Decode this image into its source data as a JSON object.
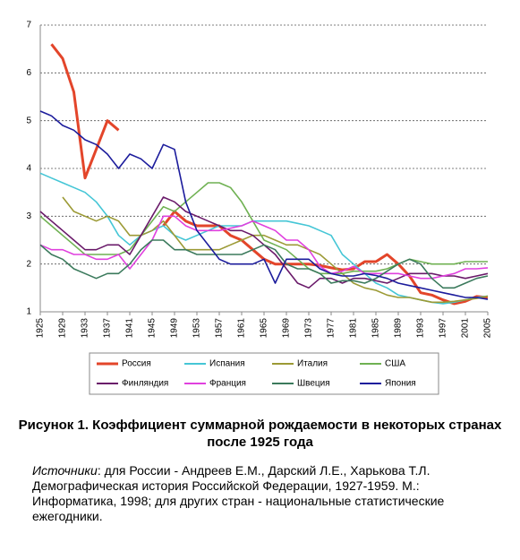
{
  "chart_data": {
    "type": "line",
    "x": [
      1925,
      1927,
      1929,
      1931,
      1933,
      1935,
      1937,
      1939,
      1941,
      1943,
      1945,
      1947,
      1949,
      1951,
      1953,
      1955,
      1957,
      1959,
      1961,
      1963,
      1965,
      1967,
      1969,
      1971,
      1973,
      1975,
      1977,
      1979,
      1981,
      1983,
      1985,
      1987,
      1989,
      1991,
      1993,
      1995,
      1997,
      1999,
      2001,
      2003,
      2005
    ],
    "xlim": [
      1925,
      2005
    ],
    "xticks": [
      1925,
      1929,
      1933,
      1937,
      1941,
      1945,
      1949,
      1953,
      1957,
      1961,
      1965,
      1969,
      1973,
      1977,
      1981,
      1985,
      1989,
      1993,
      1997,
      2001,
      2005
    ],
    "ylim": [
      1,
      7
    ],
    "yticks": [
      1,
      2,
      3,
      4,
      5,
      6,
      7
    ],
    "grid": true,
    "series": [
      {
        "name": "Россия",
        "color": "#e3452a",
        "values": [
          null,
          6.6,
          6.3,
          5.6,
          3.8,
          4.4,
          5.0,
          4.8,
          null,
          null,
          null,
          2.8,
          3.1,
          2.9,
          2.8,
          2.8,
          2.8,
          2.6,
          2.5,
          2.3,
          2.1,
          2.0,
          2.0,
          2.0,
          2.0,
          1.97,
          1.92,
          1.88,
          1.9,
          2.05,
          2.05,
          2.2,
          2.0,
          1.75,
          1.4,
          1.35,
          1.25,
          1.17,
          1.22,
          1.32,
          1.3
        ]
      },
      {
        "name": "Испания",
        "color": "#45c6d6",
        "values": [
          3.9,
          3.8,
          3.7,
          3.6,
          3.5,
          3.3,
          3.0,
          2.6,
          2.4,
          2.6,
          2.7,
          2.8,
          2.6,
          2.5,
          2.6,
          2.7,
          2.8,
          2.8,
          2.8,
          2.9,
          2.9,
          2.9,
          2.9,
          2.85,
          2.8,
          2.7,
          2.6,
          2.2,
          2.0,
          1.8,
          1.6,
          1.5,
          1.35,
          1.3,
          1.25,
          1.2,
          1.17,
          1.2,
          1.25,
          1.3,
          1.33
        ]
      },
      {
        "name": "Италия",
        "color": "#9c9a35",
        "values": [
          null,
          null,
          3.4,
          3.1,
          3.0,
          2.9,
          3.0,
          2.9,
          2.6,
          2.6,
          2.7,
          2.9,
          2.6,
          2.3,
          2.3,
          2.3,
          2.3,
          2.4,
          2.5,
          2.6,
          2.6,
          2.5,
          2.4,
          2.4,
          2.3,
          2.2,
          2.0,
          1.8,
          1.6,
          1.5,
          1.45,
          1.35,
          1.3,
          1.3,
          1.25,
          1.2,
          1.2,
          1.22,
          1.25,
          1.28,
          1.33
        ]
      },
      {
        "name": "США",
        "color": "#6fb152",
        "values": [
          3.0,
          2.8,
          2.6,
          2.4,
          2.2,
          2.2,
          2.2,
          2.2,
          2.3,
          2.6,
          2.9,
          3.2,
          3.1,
          3.3,
          3.5,
          3.7,
          3.7,
          3.6,
          3.3,
          2.9,
          2.5,
          2.4,
          2.3,
          2.1,
          1.9,
          1.8,
          1.8,
          1.8,
          1.85,
          1.85,
          1.85,
          1.9,
          2.0,
          2.1,
          2.05,
          2.0,
          2.0,
          2.0,
          2.05,
          2.05,
          2.05
        ]
      },
      {
        "name": "Финляндия",
        "color": "#6a1a6a",
        "values": [
          3.1,
          2.9,
          2.7,
          2.5,
          2.3,
          2.3,
          2.4,
          2.4,
          2.2,
          2.6,
          3.0,
          3.4,
          3.3,
          3.1,
          3.0,
          2.9,
          2.8,
          2.7,
          2.7,
          2.6,
          2.4,
          2.2,
          1.9,
          1.6,
          1.5,
          1.7,
          1.7,
          1.6,
          1.7,
          1.7,
          1.65,
          1.6,
          1.7,
          1.8,
          1.8,
          1.8,
          1.75,
          1.75,
          1.7,
          1.75,
          1.8
        ]
      },
      {
        "name": "Франция",
        "color": "#e040de",
        "values": [
          2.4,
          2.3,
          2.3,
          2.2,
          2.2,
          2.1,
          2.1,
          2.2,
          1.9,
          2.2,
          2.5,
          3.0,
          3.0,
          2.8,
          2.7,
          2.7,
          2.7,
          2.75,
          2.8,
          2.9,
          2.8,
          2.7,
          2.5,
          2.5,
          2.3,
          1.95,
          1.8,
          1.85,
          1.95,
          1.8,
          1.8,
          1.8,
          1.8,
          1.75,
          1.7,
          1.7,
          1.75,
          1.8,
          1.9,
          1.9,
          1.92
        ]
      },
      {
        "name": "Швеция",
        "color": "#3b7a5c",
        "values": [
          2.4,
          2.2,
          2.1,
          1.9,
          1.8,
          1.7,
          1.8,
          1.8,
          2.0,
          2.3,
          2.5,
          2.5,
          2.3,
          2.3,
          2.2,
          2.2,
          2.2,
          2.2,
          2.2,
          2.3,
          2.4,
          2.3,
          2.0,
          1.9,
          1.9,
          1.8,
          1.6,
          1.65,
          1.65,
          1.6,
          1.7,
          1.85,
          2.0,
          2.1,
          2.0,
          1.7,
          1.5,
          1.5,
          1.6,
          1.7,
          1.75
        ]
      },
      {
        "name": "Япония",
        "color": "#1c1c9c",
        "values": [
          5.2,
          5.1,
          4.9,
          4.8,
          4.6,
          4.5,
          4.3,
          4.0,
          4.3,
          4.2,
          4.0,
          4.5,
          4.4,
          3.3,
          2.7,
          2.4,
          2.1,
          2.0,
          2.0,
          2.0,
          2.1,
          1.6,
          2.1,
          2.1,
          2.1,
          1.9,
          1.8,
          1.75,
          1.75,
          1.8,
          1.76,
          1.7,
          1.6,
          1.55,
          1.5,
          1.45,
          1.4,
          1.35,
          1.3,
          1.3,
          1.26
        ]
      }
    ],
    "caption": "Рисунок 1. Коэффициент суммарной рождаемости в некоторых странах после 1925 года",
    "sources_label": "Источники",
    "sources_text": ": для России - Андреев Е.М., Дарский Л.Е., Харькова Т.Л. Демографическая история Российской Федерации, 1927-1959. М.: Информатика, 1998; для других стран - национальные статистические ежегодники."
  }
}
